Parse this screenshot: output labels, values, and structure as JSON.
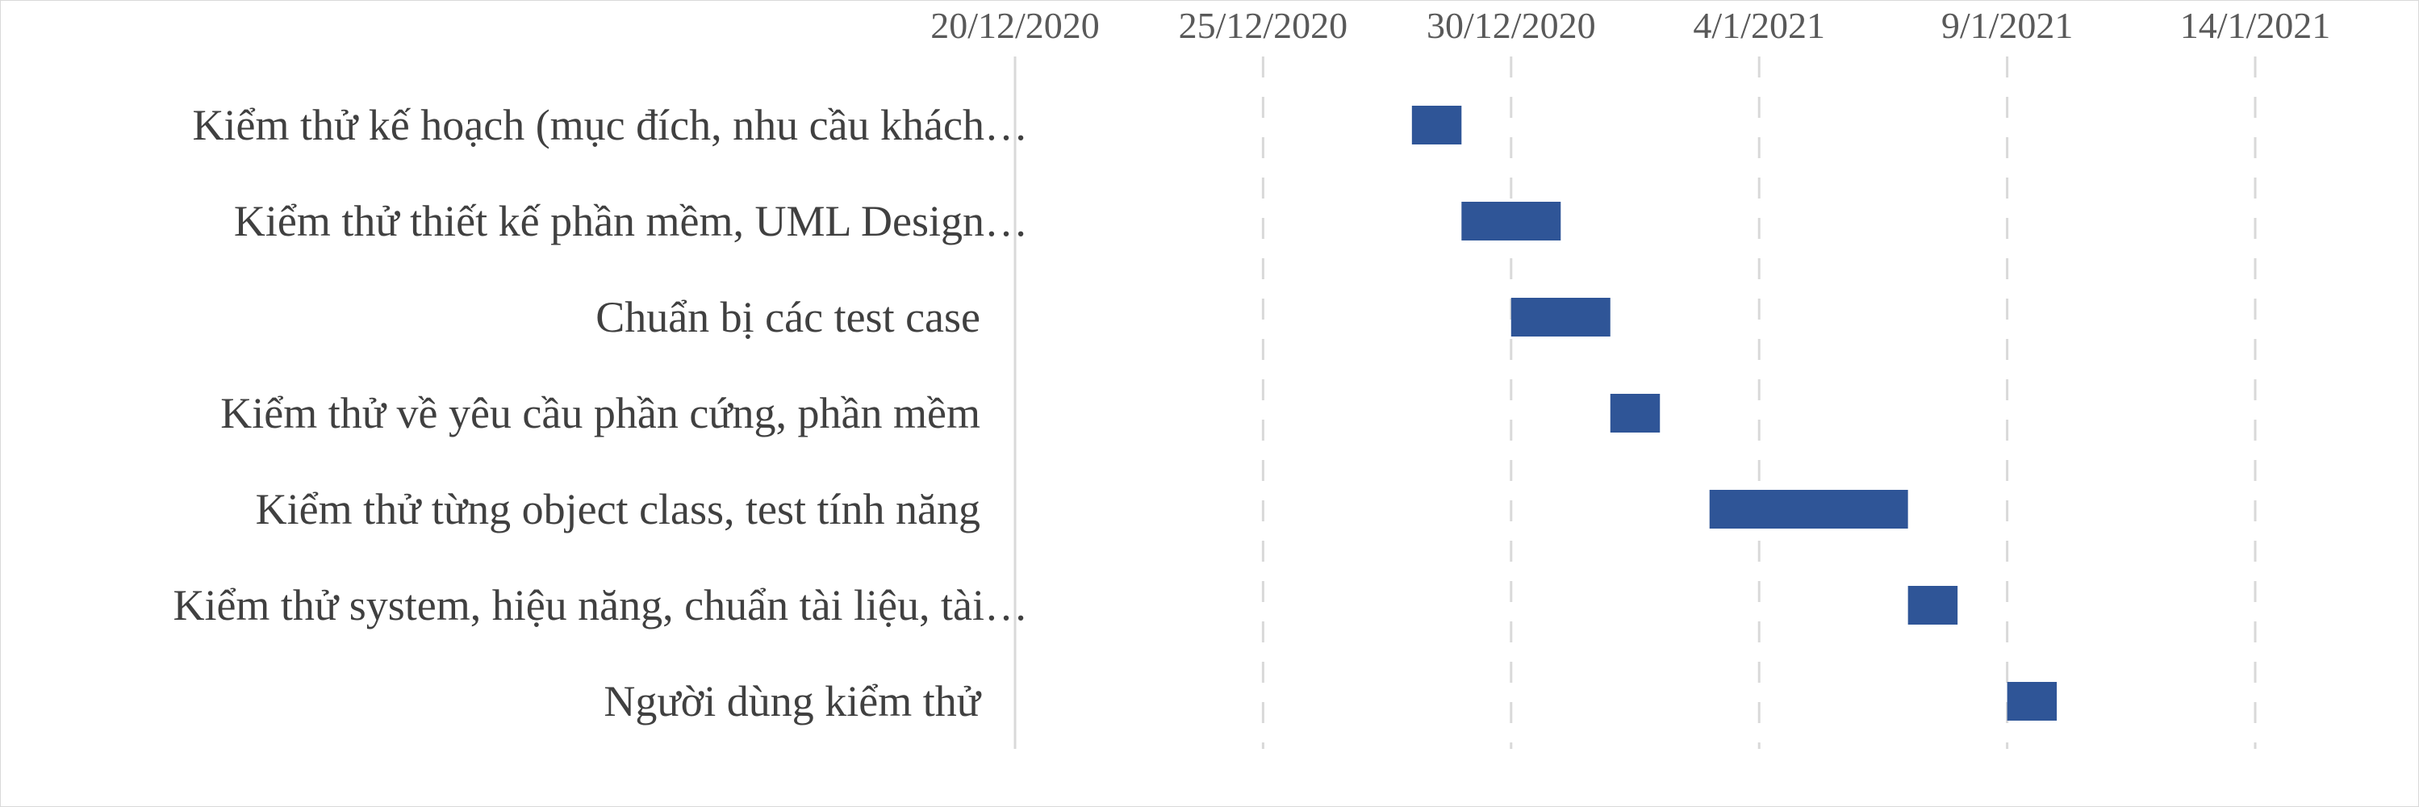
{
  "chart_data": {
    "type": "bar",
    "orientation": "horizontal",
    "stacked_gantt": true,
    "x_ticks": [
      "20/12/2020",
      "25/12/2020",
      "30/12/2020",
      "4/1/2021",
      "9/1/2021",
      "14/1/2021"
    ],
    "x_range": [
      "2020-12-20",
      "2021-01-14"
    ],
    "categories": [
      "Kiểm thử kế hoạch (mục đích, nhu cầu khách…",
      "Kiểm thử thiết kế phần mềm, UML Design…",
      "Chuẩn bị các test case",
      "Kiểm thử về yêu cầu phần cứng, phần mềm",
      "Kiểm thử từng object class, test tính năng",
      "Kiểm thử system, hiệu năng, chuẩn tài liệu, tài…",
      "Người dùng kiểm thử"
    ],
    "series": [
      {
        "start": [
          "2020-12-28",
          "2020-12-29",
          "2020-12-30",
          "2021-01-01",
          "2021-01-03",
          "2021-01-07",
          "2021-01-09"
        ],
        "duration_days": [
          1,
          2,
          2,
          1,
          4,
          1,
          1
        ],
        "color": "#2f5597"
      }
    ],
    "grid": "vertical-dashed",
    "gridline_color": "#d9d9d9",
    "legend": "none"
  }
}
